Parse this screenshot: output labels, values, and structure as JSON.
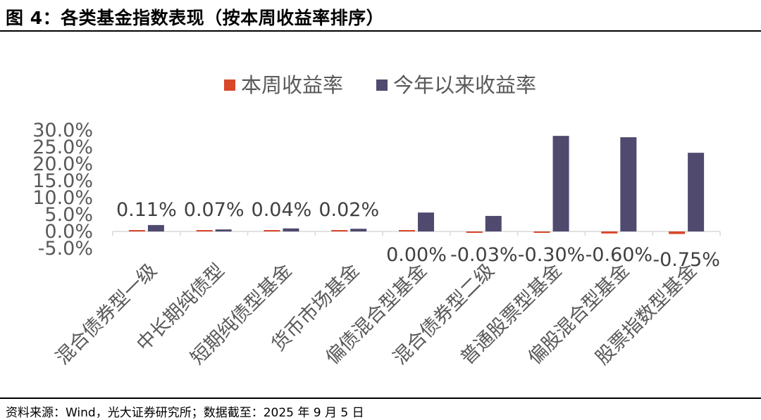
{
  "header": {
    "title": "图 4：各类基金指数表现（按本周收益率排序）"
  },
  "footer": {
    "source": "资料来源：Wind，光大证券研究所；数据截至：2025 年 9 月 5 日"
  },
  "chart_data": {
    "type": "bar",
    "title": "",
    "xlabel": "",
    "ylabel": "",
    "categories": [
      "混合债券型一级",
      "中长期纯债型",
      "短期纯债型基金",
      "货币市场基金",
      "偏债混合型基金",
      "混合债券型二级",
      "普通股票型基金",
      "偏股混合型基金",
      "股票指数型基金"
    ],
    "series": [
      {
        "name": "本周收益率",
        "color": "#D9472B",
        "values": [
          0.11,
          0.07,
          0.04,
          0.02,
          0.0,
          -0.03,
          -0.3,
          -0.6,
          -0.75
        ]
      },
      {
        "name": "今年以来收益率",
        "color": "#4F4A6E",
        "values": [
          1.9,
          0.6,
          0.9,
          0.8,
          5.6,
          4.6,
          28.3,
          27.9,
          23.3
        ]
      }
    ],
    "data_labels": [
      "0.11%",
      "0.07%",
      "0.04%",
      "0.02%",
      "0.00%",
      "-0.03%",
      "-0.30%",
      "-0.60%",
      "-0.75%"
    ],
    "yticks": [
      "30.0%",
      "25.0%",
      "20.0%",
      "15.0%",
      "10.0%",
      "5.0%",
      "0.0%",
      "-5.0%"
    ],
    "ylim": [
      -5,
      30
    ],
    "grid": false,
    "legend_position": "top"
  }
}
